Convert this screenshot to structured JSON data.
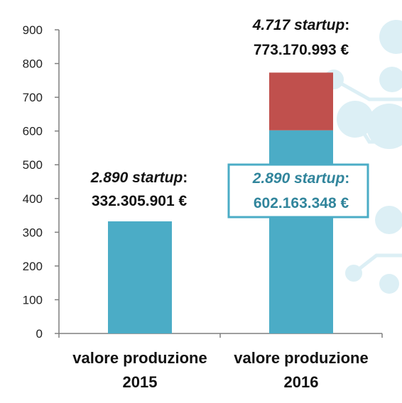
{
  "colors": {
    "base": "#4BACC6",
    "increment": "#C0504D",
    "axis": "#7F7F7F",
    "highlight_text": "#31859C",
    "deco": "#DCEFF5"
  },
  "chart_data": {
    "type": "bar",
    "stacked": true,
    "categories": [
      [
        "valore produzione",
        "2015"
      ],
      [
        "valore produzione",
        "2016"
      ]
    ],
    "series": [
      {
        "values": [
          332.3,
          602.16
        ],
        "color": "#4BACC6"
      },
      {
        "values": [
          0,
          171.01
        ],
        "color": "#C0504D"
      }
    ],
    "ylim": [
      0,
      900
    ],
    "yticks": [
      0,
      100,
      200,
      300,
      400,
      500,
      600,
      700,
      800,
      900
    ],
    "grid": false,
    "annotations": [
      {
        "bar": 0,
        "line1_italic": "2.890 startup",
        "line1_rest": ":",
        "line2": "332.305.901 €"
      },
      {
        "bar": 1,
        "line1_italic": "4.717 startup",
        "line1_rest": ":",
        "line2": "773.170.993 €"
      },
      {
        "bar": 1,
        "boxed": true,
        "line1_italic": "2.890 startup",
        "line1_rest": ":",
        "line2": "602.163.348 €"
      }
    ]
  }
}
